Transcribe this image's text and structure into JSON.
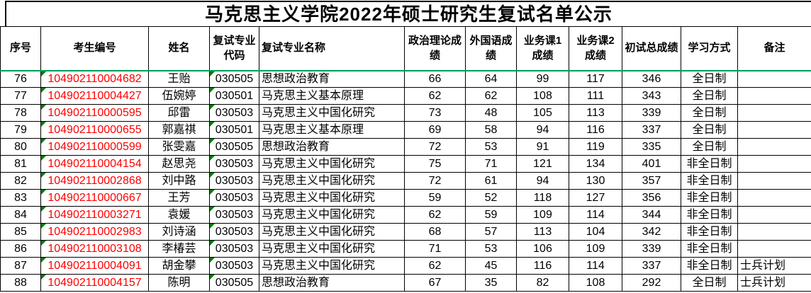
{
  "title": "马克思主义学院2022年硕士研究生复试名单公示",
  "colors": {
    "candidate_number_red": "#ff0000",
    "row_accent_green": "#00a05a",
    "flag_green": "#008000",
    "grid_line": "#000000"
  },
  "table": {
    "columns": [
      {
        "key": "index",
        "label": "序号",
        "align": "center"
      },
      {
        "key": "candidate-no",
        "label": "考生编号",
        "align": "center",
        "red": true,
        "flag": true
      },
      {
        "key": "name",
        "label": "姓名",
        "align": "center"
      },
      {
        "key": "major-code",
        "label": "复试专业代码",
        "align": "center",
        "flag": true
      },
      {
        "key": "major-name",
        "label": "复试专业名称",
        "align": "left",
        "label_align": "left"
      },
      {
        "key": "politics-score",
        "label": "政治理论成绩",
        "align": "center"
      },
      {
        "key": "foreign-lang-score",
        "label": "外国语成绩",
        "align": "center"
      },
      {
        "key": "course1-score",
        "label": "业务课1成绩",
        "align": "center"
      },
      {
        "key": "course2-score",
        "label": "业务课2成绩",
        "align": "center"
      },
      {
        "key": "initial-total-score",
        "label": "初试总成绩",
        "align": "center"
      },
      {
        "key": "study-mode",
        "label": "学习方式",
        "align": "center"
      },
      {
        "key": "remarks",
        "label": "备注",
        "align": "left"
      }
    ],
    "rows": [
      [
        "76",
        "104902110004682",
        "王贻",
        "030505",
        "思想政治教育",
        "66",
        "64",
        "99",
        "117",
        "346",
        "全日制",
        ""
      ],
      [
        "77",
        "104902110004427",
        "伍婉婷",
        "030501",
        "马克思主义基本原理",
        "62",
        "62",
        "108",
        "111",
        "343",
        "全日制",
        ""
      ],
      [
        "78",
        "104902110000595",
        "邱雷",
        "030503",
        "马克思主义中国化研究",
        "73",
        "48",
        "105",
        "113",
        "339",
        "全日制",
        ""
      ],
      [
        "79",
        "104902110000655",
        "郭嘉祺",
        "030501",
        "马克思主义基本原理",
        "69",
        "58",
        "94",
        "116",
        "337",
        "全日制",
        ""
      ],
      [
        "80",
        "104902110000599",
        "张雯嘉",
        "030505",
        "思想政治教育",
        "72",
        "53",
        "91",
        "119",
        "335",
        "全日制",
        ""
      ],
      [
        "81",
        "104902110004154",
        "赵思尧",
        "030503",
        "马克思主义中国化研究",
        "75",
        "71",
        "121",
        "134",
        "401",
        "非全日制",
        ""
      ],
      [
        "82",
        "104902110002868",
        "刘中路",
        "030503",
        "马克思主义中国化研究",
        "72",
        "61",
        "94",
        "130",
        "357",
        "非全日制",
        ""
      ],
      [
        "83",
        "104902110000667",
        "王芳",
        "030503",
        "马克思主义中国化研究",
        "59",
        "52",
        "118",
        "127",
        "356",
        "非全日制",
        ""
      ],
      [
        "84",
        "104902110003271",
        "袁媛",
        "030503",
        "马克思主义中国化研究",
        "62",
        "59",
        "109",
        "114",
        "344",
        "非全日制",
        ""
      ],
      [
        "85",
        "104902110002983",
        "刘诗涵",
        "030503",
        "马克思主义中国化研究",
        "68",
        "57",
        "113",
        "104",
        "342",
        "非全日制",
        ""
      ],
      [
        "86",
        "104902110003108",
        "李椿芸",
        "030503",
        "马克思主义中国化研究",
        "71",
        "53",
        "106",
        "109",
        "339",
        "非全日制",
        ""
      ],
      [
        "87",
        "104902110004091",
        "胡金攀",
        "030503",
        "马克思主义中国化研究",
        "62",
        "45",
        "116",
        "114",
        "337",
        "非全日制",
        "士兵计划"
      ],
      [
        "88",
        "104902110004157",
        "陈明",
        "030505",
        "思想政治教育",
        "67",
        "35",
        "82",
        "108",
        "292",
        "全日制",
        "士兵计划"
      ]
    ]
  }
}
